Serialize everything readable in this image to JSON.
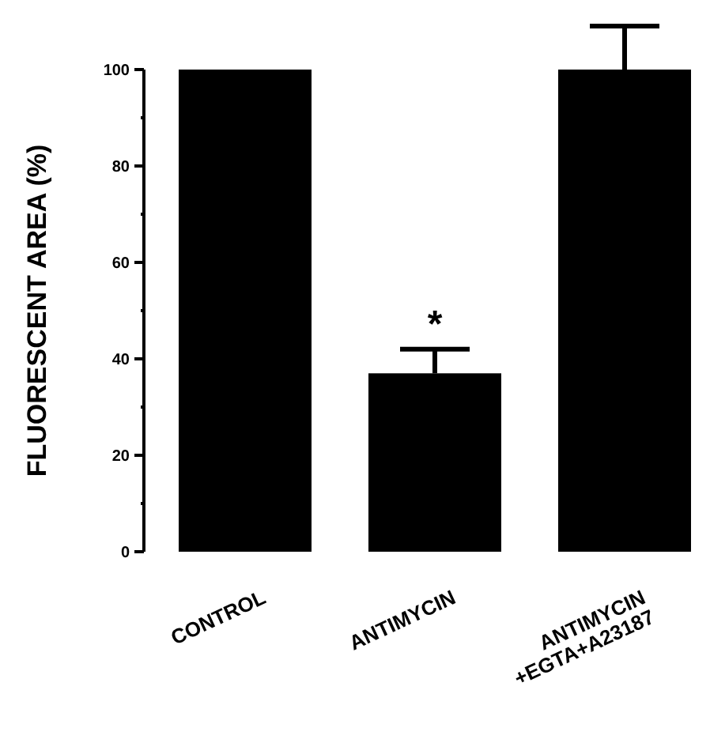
{
  "chart_data": {
    "type": "bar",
    "ylabel": "FLUORESCENT AREA (%)",
    "categories": [
      "CONTROL",
      "ANTIMYCIN",
      "ANTIMYCIN\n+EGTA+A23187"
    ],
    "values": [
      100,
      37,
      100
    ],
    "errors": [
      null,
      5,
      9
    ],
    "color": "#000000",
    "ylim": [
      0,
      100
    ],
    "yticks": [
      0,
      {
        "value": 10,
        "label": null
      },
      20,
      {
        "value": 30,
        "label": null
      },
      40,
      {
        "value": 50,
        "label": null
      },
      60,
      {
        "value": 70,
        "label": null
      },
      80,
      {
        "value": 90,
        "label": null
      },
      100
    ],
    "annotations": [
      "*"
    ],
    "grid": false
  }
}
